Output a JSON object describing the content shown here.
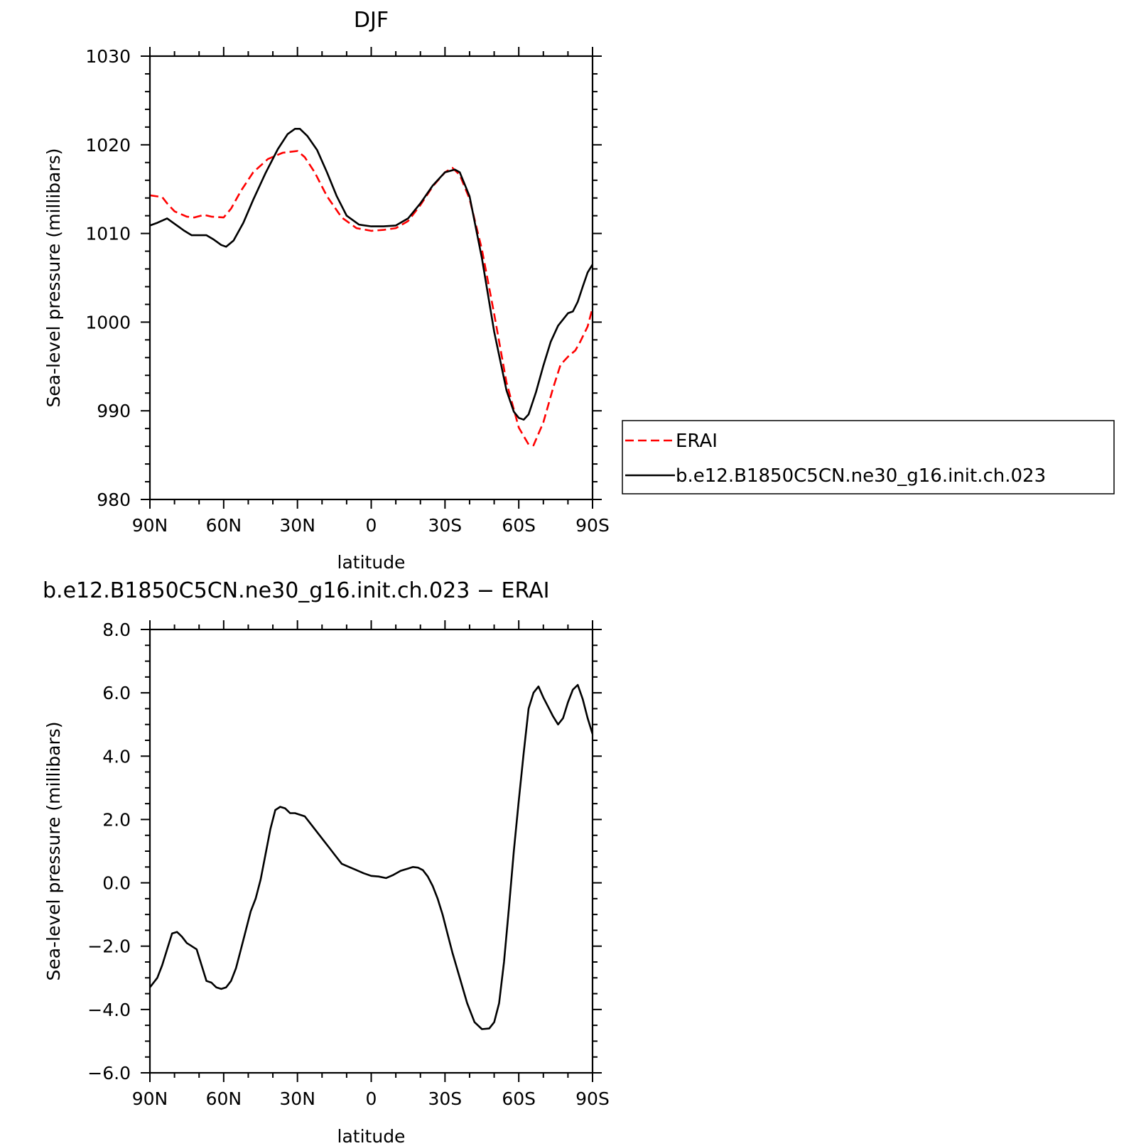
{
  "chart_data": [
    {
      "type": "line",
      "title": "DJF",
      "xlabel": "latitude",
      "ylabel": "Sea-level pressure (millibars)",
      "xlim": [
        90,
        -90
      ],
      "ylim": [
        980,
        1030
      ],
      "x_ticks": [
        {
          "value": 90,
          "label": "90N"
        },
        {
          "value": 60,
          "label": "60N"
        },
        {
          "value": 30,
          "label": "30N"
        },
        {
          "value": 0,
          "label": "0"
        },
        {
          "value": -30,
          "label": "30S"
        },
        {
          "value": -60,
          "label": "60S"
        },
        {
          "value": -90,
          "label": "90S"
        }
      ],
      "y_ticks": [
        {
          "value": 1030,
          "label": "1030"
        },
        {
          "value": 1020,
          "label": "1020"
        },
        {
          "value": 1010,
          "label": "1010"
        },
        {
          "value": 1000,
          "label": "1000"
        },
        {
          "value": 990,
          "label": "990"
        },
        {
          "value": 980,
          "label": "980"
        }
      ],
      "legend": {
        "placement": "right",
        "entries": [
          {
            "label": "ERAI",
            "color": "#ff0000",
            "dash": "dashed"
          },
          {
            "label": "b.e12.B1850C5CN.ne30_g16.init.ch.023",
            "color": "#000000",
            "dash": "solid"
          }
        ]
      },
      "series": [
        {
          "name": "ERAI",
          "color": "#ff0000",
          "dash": "dashed",
          "x": [
            90,
            85,
            83,
            80,
            75,
            72,
            68,
            65,
            60,
            57,
            53,
            48,
            42,
            36,
            30,
            27,
            23,
            18,
            12,
            6,
            0,
            -5,
            -10,
            -15,
            -20,
            -25,
            -30,
            -33,
            -36,
            -40,
            -45,
            -50,
            -55,
            -60,
            -64,
            -66,
            -70,
            -74,
            -77,
            -80,
            -83,
            -85,
            -88,
            -90
          ],
          "y": [
            1014.3,
            1014.1,
            1013.4,
            1012.5,
            1011.9,
            1011.8,
            1012.1,
            1011.9,
            1011.8,
            1012.8,
            1014.8,
            1016.9,
            1018.4,
            1019.1,
            1019.3,
            1018.6,
            1016.9,
            1014.2,
            1011.8,
            1010.6,
            1010.3,
            1010.4,
            1010.6,
            1011.4,
            1013.2,
            1015.3,
            1016.9,
            1017.4,
            1016.6,
            1013.9,
            1008.2,
            1000.9,
            993.2,
            988.1,
            986.2,
            986.1,
            988.7,
            992.6,
            995.2,
            996.1,
            996.8,
            997.8,
            999.5,
            1001.6
          ]
        },
        {
          "name": "b.e12.B1850C5CN.ne30_g16.init.ch.023",
          "color": "#000000",
          "dash": "solid",
          "x": [
            90,
            87,
            83,
            80,
            76,
            73,
            70,
            67,
            64,
            61,
            59,
            56,
            52,
            48,
            43,
            38,
            34,
            31,
            29,
            26,
            22,
            18,
            14,
            10,
            5,
            0,
            -5,
            -10,
            -15,
            -20,
            -25,
            -30,
            -34,
            -36,
            -40,
            -45,
            -50,
            -55,
            -58,
            -60,
            -62,
            -64,
            -67,
            -70,
            -73,
            -76,
            -80,
            -82,
            -84,
            -86,
            -88,
            -90
          ],
          "y": [
            1010.9,
            1011.2,
            1011.7,
            1011.1,
            1010.3,
            1009.8,
            1009.8,
            1009.8,
            1009.3,
            1008.7,
            1008.5,
            1009.2,
            1011.2,
            1013.8,
            1016.8,
            1019.5,
            1021.2,
            1021.8,
            1021.8,
            1021.0,
            1019.4,
            1016.9,
            1014.2,
            1012.0,
            1011.0,
            1010.8,
            1010.8,
            1010.9,
            1011.7,
            1013.4,
            1015.4,
            1016.9,
            1017.2,
            1016.9,
            1014.2,
            1007.2,
            998.9,
            992.3,
            989.9,
            989.2,
            989.0,
            989.6,
            992.1,
            995.1,
            997.8,
            999.6,
            1001.0,
            1001.2,
            1002.3,
            1004.0,
            1005.6,
            1006.5
          ]
        }
      ]
    },
    {
      "type": "line",
      "title": "b.e12.B1850C5CN.ne30_g16.init.ch.023 - ERAI",
      "xlabel": "latitude",
      "ylabel": "Sea-level pressure (millibars)",
      "xlim": [
        90,
        -90
      ],
      "ylim": [
        -6,
        8
      ],
      "x_ticks": [
        {
          "value": 90,
          "label": "90N"
        },
        {
          "value": 60,
          "label": "60N"
        },
        {
          "value": 30,
          "label": "30N"
        },
        {
          "value": 0,
          "label": "0"
        },
        {
          "value": -30,
          "label": "30S"
        },
        {
          "value": -60,
          "label": "60S"
        },
        {
          "value": -90,
          "label": "90S"
        }
      ],
      "y_ticks": [
        {
          "value": 8,
          "label": "8.0"
        },
        {
          "value": 6,
          "label": "6.0"
        },
        {
          "value": 4,
          "label": "4.0"
        },
        {
          "value": 2,
          "label": "2.0"
        },
        {
          "value": 0,
          "label": "0.0"
        },
        {
          "value": -2,
          "label": "-2.0"
        },
        {
          "value": -4,
          "label": "-4.0"
        },
        {
          "value": -6,
          "label": "-6.0"
        }
      ],
      "series": [
        {
          "color": "#000000",
          "dash": "solid",
          "x": [
            90,
            87,
            85,
            83,
            81,
            79,
            77,
            75,
            73,
            71,
            69,
            67,
            65,
            63,
            61,
            59,
            57,
            55,
            53,
            51,
            49,
            47,
            45,
            43,
            41,
            39,
            37,
            35,
            33,
            31,
            29,
            27,
            25,
            23,
            21,
            19,
            17,
            15,
            12,
            9,
            6,
            3,
            0,
            -3,
            -6,
            -9,
            -12,
            -15,
            -17,
            -19,
            -21,
            -23,
            -25,
            -27,
            -29,
            -31,
            -33,
            -36,
            -39,
            -42,
            -45,
            -48,
            -50,
            -52,
            -54,
            -56,
            -58,
            -60,
            -62,
            -64,
            -66,
            -68,
            -70,
            -72,
            -74,
            -76,
            -78,
            -80,
            -82,
            -84,
            -86,
            -88,
            -90
          ],
          "y": [
            -3.3,
            -3.0,
            -2.6,
            -2.1,
            -1.6,
            -1.55,
            -1.7,
            -1.9,
            -2.0,
            -2.1,
            -2.6,
            -3.1,
            -3.15,
            -3.3,
            -3.35,
            -3.3,
            -3.1,
            -2.7,
            -2.1,
            -1.5,
            -0.9,
            -0.5,
            0.1,
            0.9,
            1.7,
            2.3,
            2.4,
            2.35,
            2.2,
            2.2,
            2.15,
            2.1,
            1.9,
            1.7,
            1.5,
            1.3,
            1.1,
            0.9,
            0.6,
            0.5,
            0.4,
            0.3,
            0.22,
            0.2,
            0.15,
            0.25,
            0.38,
            0.45,
            0.5,
            0.48,
            0.4,
            0.2,
            -0.1,
            -0.5,
            -1.0,
            -1.6,
            -2.2,
            -3.0,
            -3.8,
            -4.4,
            -4.62,
            -4.6,
            -4.4,
            -3.8,
            -2.5,
            -0.8,
            1.0,
            2.6,
            4.1,
            5.5,
            6.0,
            6.2,
            5.85,
            5.55,
            5.25,
            5.0,
            5.2,
            5.7,
            6.1,
            6.25,
            5.8,
            5.2,
            4.7
          ]
        }
      ]
    }
  ]
}
